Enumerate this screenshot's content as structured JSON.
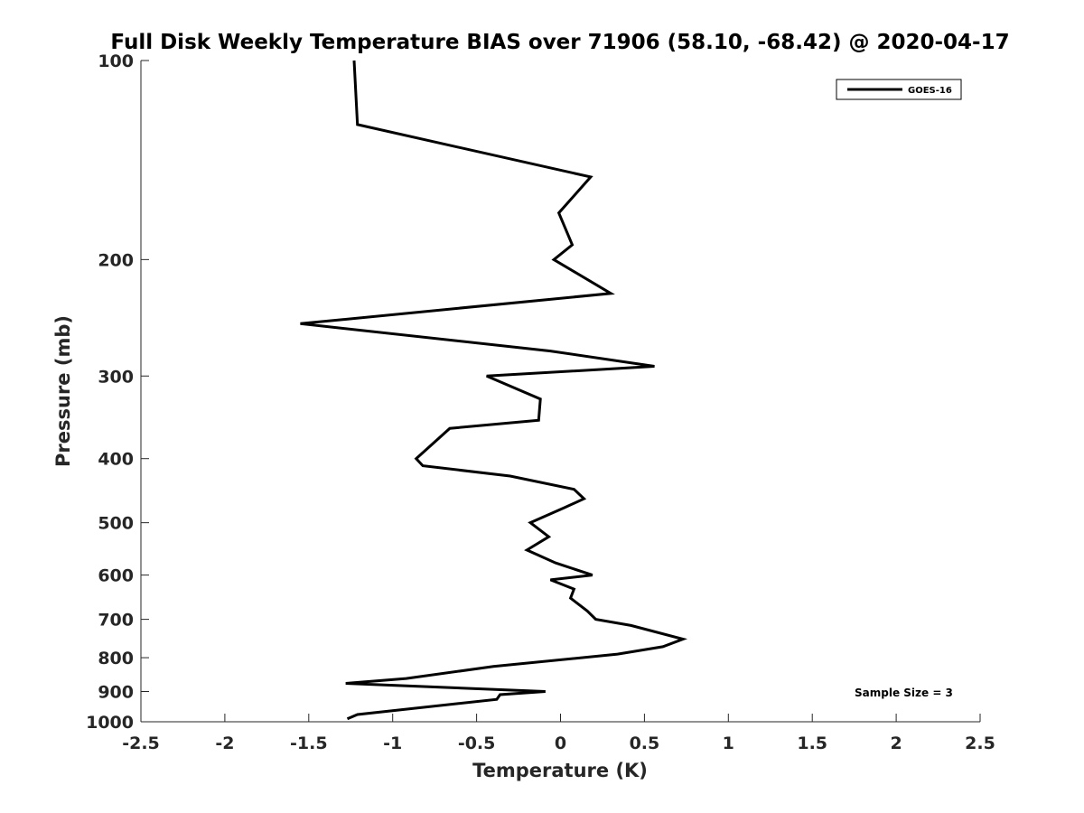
{
  "chart_data": {
    "type": "line",
    "title": "Full Disk Weekly Temperature BIAS over 71906 (58.10, -68.42) @ 2020-04-17",
    "xlabel": "Temperature (K)",
    "ylabel": "Pressure (mb)",
    "xlim": [
      -2.5,
      2.5
    ],
    "ylim": [
      1000,
      100
    ],
    "y_scale": "log",
    "y_reversed": true,
    "x_ticks": [
      -2.5,
      -2,
      -1.5,
      -1,
      -0.5,
      0,
      0.5,
      1,
      1.5,
      2,
      2.5
    ],
    "x_tick_labels": [
      "-2.5",
      "-2",
      "-1.5",
      "-1",
      "-0.5",
      "0",
      "0.5",
      "1",
      "1.5",
      "2",
      "2.5"
    ],
    "y_ticks": [
      100,
      200,
      300,
      400,
      500,
      600,
      700,
      800,
      900,
      1000
    ],
    "y_tick_labels": [
      "100",
      "200",
      "300",
      "400",
      "500",
      "600",
      "700",
      "800",
      "900",
      "1000"
    ],
    "grid": false,
    "legend_position": "top-right",
    "series": [
      {
        "name": "GOES-16",
        "color": "#000000",
        "points": [
          {
            "x": -1.23,
            "p": 100
          },
          {
            "x": -1.21,
            "p": 125
          },
          {
            "x": 0.18,
            "p": 150
          },
          {
            "x": -0.01,
            "p": 170
          },
          {
            "x": 0.07,
            "p": 190
          },
          {
            "x": -0.04,
            "p": 200
          },
          {
            "x": 0.3,
            "p": 225
          },
          {
            "x": -1.55,
            "p": 250
          },
          {
            "x": -0.06,
            "p": 275
          },
          {
            "x": 0.56,
            "p": 290
          },
          {
            "x": -0.44,
            "p": 300
          },
          {
            "x": -0.12,
            "p": 325
          },
          {
            "x": -0.13,
            "p": 350
          },
          {
            "x": -0.66,
            "p": 360
          },
          {
            "x": -0.86,
            "p": 400
          },
          {
            "x": -0.82,
            "p": 410
          },
          {
            "x": -0.3,
            "p": 425
          },
          {
            "x": 0.08,
            "p": 445
          },
          {
            "x": 0.14,
            "p": 460
          },
          {
            "x": 0.02,
            "p": 475
          },
          {
            "x": -0.18,
            "p": 500
          },
          {
            "x": -0.07,
            "p": 525
          },
          {
            "x": -0.2,
            "p": 550
          },
          {
            "x": -0.03,
            "p": 575
          },
          {
            "x": 0.19,
            "p": 600
          },
          {
            "x": -0.06,
            "p": 610
          },
          {
            "x": 0.08,
            "p": 630
          },
          {
            "x": 0.06,
            "p": 650
          },
          {
            "x": 0.16,
            "p": 680
          },
          {
            "x": 0.21,
            "p": 700
          },
          {
            "x": 0.42,
            "p": 715
          },
          {
            "x": 0.73,
            "p": 750
          },
          {
            "x": 0.61,
            "p": 770
          },
          {
            "x": 0.34,
            "p": 790
          },
          {
            "x": -0.4,
            "p": 825
          },
          {
            "x": -0.92,
            "p": 860
          },
          {
            "x": -1.28,
            "p": 875
          },
          {
            "x": -0.09,
            "p": 900
          },
          {
            "x": -0.36,
            "p": 910
          },
          {
            "x": -0.38,
            "p": 925
          },
          {
            "x": -1.21,
            "p": 975
          },
          {
            "x": -1.27,
            "p": 990
          }
        ]
      }
    ],
    "annotations": [
      {
        "text": "Sample Size = 3"
      }
    ]
  }
}
